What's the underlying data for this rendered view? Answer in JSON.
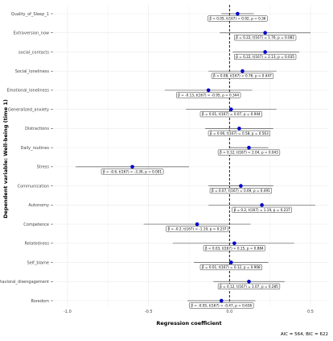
{
  "chart_data": {
    "type": "forest",
    "xlabel": "Regression coefficient",
    "ylabel": "Dependent variable: Well-being (time 1)",
    "caption": "AIC = 564, BIC = 622",
    "xlim": [
      -1.0,
      0.5
    ],
    "x_ticks": [
      "-1.0",
      "-0.5",
      "0.0",
      "0.5"
    ],
    "reference_line": 0,
    "grid": true,
    "point_color": "#0000cc",
    "rows": [
      {
        "label": "Quality_of_Sleep_1",
        "estimate": 0.05,
        "ci": [
          -0.05,
          0.15
        ],
        "annotation": "β̂ = 0.05,  t(167) = 0.92,  p = 0.36"
      },
      {
        "label": "Extraversion_now",
        "estimate": 0.22,
        "ci": [
          -0.06,
          0.5
        ],
        "annotation": "β̂ = 0.22,  t(167) = 1.76,  p = 0.081"
      },
      {
        "label": "social_contacts",
        "estimate": 0.22,
        "ci": [
          0.02,
          0.43
        ],
        "annotation": "β̂ = 0.22,  t(167) = 2.13,  p = 0.035"
      },
      {
        "label": "Social_loneliness",
        "estimate": 0.08,
        "ci": [
          -0.13,
          0.29
        ],
        "annotation": "β̂ = 0.08,  t(167) = 0.76,  p = 0.447"
      },
      {
        "label": "Emotional_loneliness",
        "estimate": -0.13,
        "ci": [
          -0.4,
          0.14
        ],
        "annotation": "β̂ = -0.13,  t(167) = -0.95,  p = 0.344"
      },
      {
        "label": "Generalized_anxiety",
        "estimate": 0.01,
        "ci": [
          -0.27,
          0.29
        ],
        "annotation": "β̂ = 0.01,  t(167) = 0.07,  p = 0.944"
      },
      {
        "label": "Distractions",
        "estimate": 0.06,
        "ci": [
          -0.15,
          0.27
        ],
        "annotation": "β̂ = 0.06,  t(167) = 0.58,  p = 0.563"
      },
      {
        "label": "Daily_routines",
        "estimate": 0.12,
        "ci": [
          0.0,
          0.24
        ],
        "annotation": "β̂ = 0.12,  t(167) = 2.04,  p = 0.043"
      },
      {
        "label": "Stress",
        "estimate": -0.6,
        "ci": [
          -0.95,
          -0.25
        ],
        "annotation": "β̂ = -0.6,  t(167) = -3.39,  p = 0.001"
      },
      {
        "label": "Communication",
        "estimate": 0.07,
        "ci": [
          -0.13,
          0.27
        ],
        "annotation": "β̂ = 0.07,  t(167) = 0.69,  p = 0.491"
      },
      {
        "label": "Autonomy",
        "estimate": 0.2,
        "ci": [
          -0.13,
          0.53
        ],
        "annotation": "β̂ = 0.2,  t(167) = 1.19,  p = 0.237"
      },
      {
        "label": "Competence",
        "estimate": -0.2,
        "ci": [
          -0.53,
          0.13
        ],
        "annotation": "β̂ = -0.2,  t(167) = -1.19,  p = 0.237"
      },
      {
        "label": "Relatedness",
        "estimate": 0.03,
        "ci": [
          -0.35,
          0.4
        ],
        "annotation": "β̂ = 0.03,  t(167) = 0.15,  p = 0.884"
      },
      {
        "label": "Self_blame",
        "estimate": 0.01,
        "ci": [
          -0.22,
          0.24
        ],
        "annotation": "β̂ = 0.01,  t(167) = 0.12,  p = 0.908"
      },
      {
        "label": "Behavioral_disengagement",
        "estimate": 0.12,
        "ci": [
          -0.1,
          0.34
        ],
        "annotation": "β̂ = 0.12,  t(167) = 1.07,  p = 0.285"
      },
      {
        "label": "Boredom",
        "estimate": -0.05,
        "ci": [
          -0.26,
          0.16
        ],
        "annotation": "β̂ = -0.05,  t(167) = -0.47,  p = 0.636"
      }
    ]
  }
}
